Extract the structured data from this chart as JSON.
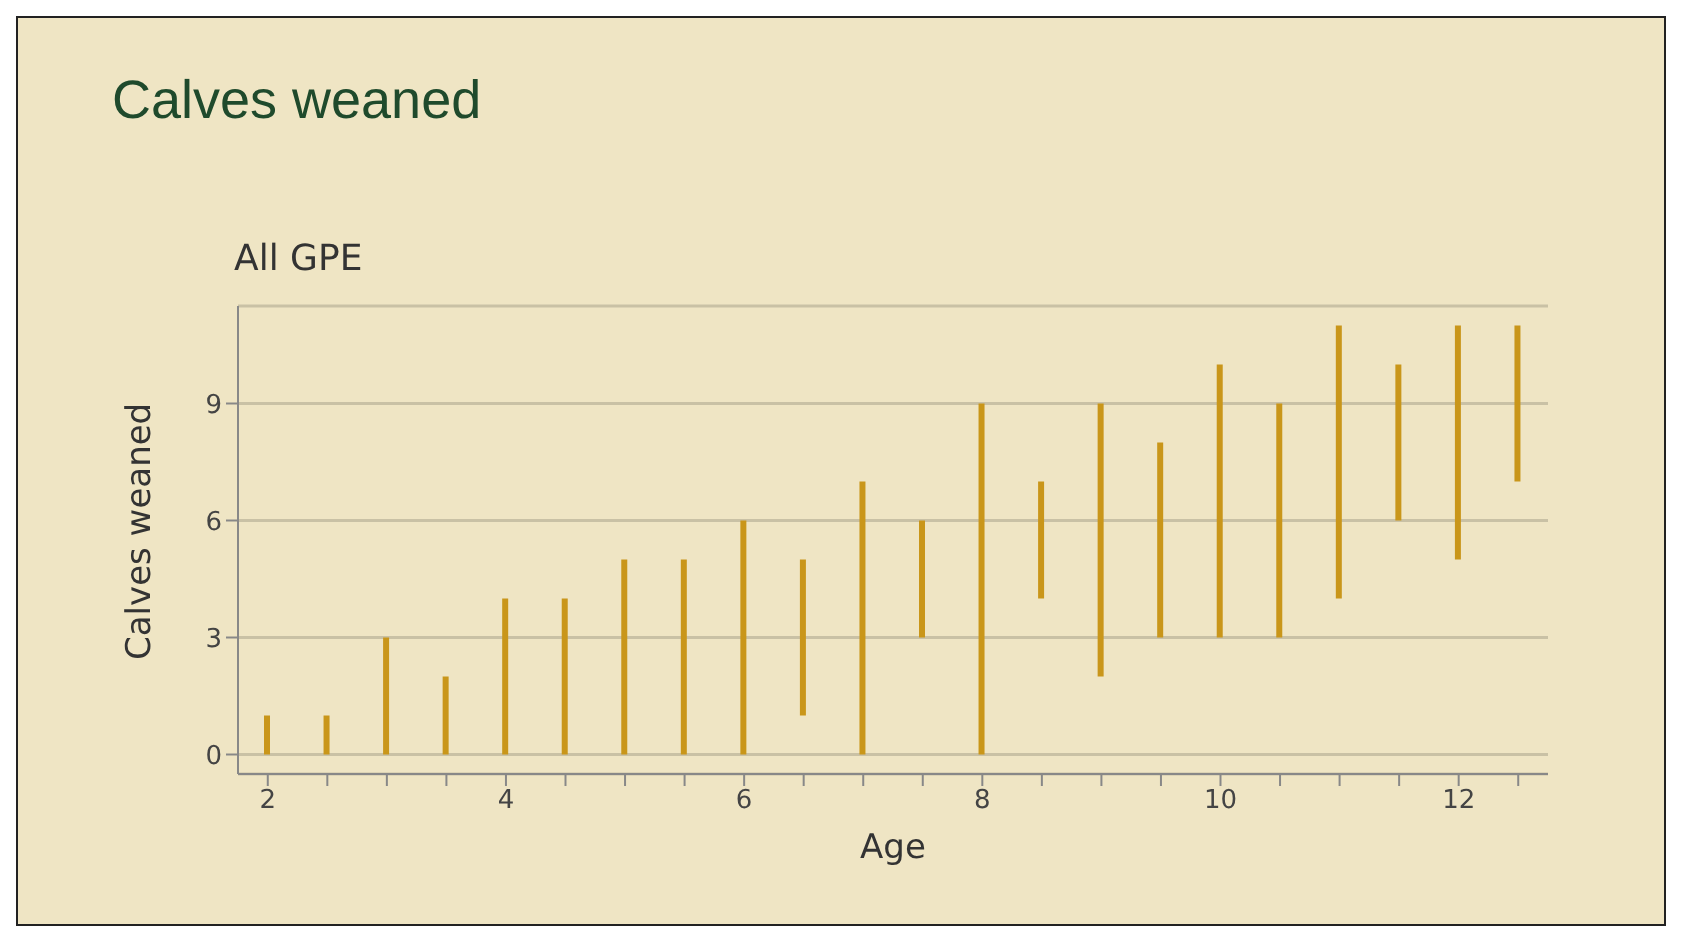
{
  "chart_data": {
    "type": "bar",
    "title": "Calves weaned",
    "subtitle": "All GPE",
    "xlabel": "Age",
    "ylabel": "Calves weaned",
    "categories": [
      "2",
      null,
      null,
      null,
      "4",
      null,
      null,
      null,
      "6",
      null,
      null,
      null,
      "8",
      null,
      null,
      null,
      "10",
      null,
      null,
      null,
      "12",
      null
    ],
    "base": [
      0,
      0,
      0,
      0,
      0,
      0,
      0,
      0,
      0,
      1,
      0,
      3,
      0,
      4,
      2,
      3,
      3,
      3,
      4,
      6,
      5,
      7
    ],
    "values": [
      1,
      1,
      3,
      2,
      4,
      4,
      5,
      5,
      6,
      4,
      7,
      3,
      9,
      3,
      7,
      5,
      7,
      6,
      7,
      4,
      6,
      4
    ],
    "color": "#c9961a",
    "ylim": [
      -0.5,
      11.5
    ],
    "yticks": [
      0,
      3,
      6,
      9
    ],
    "grid": "y"
  }
}
